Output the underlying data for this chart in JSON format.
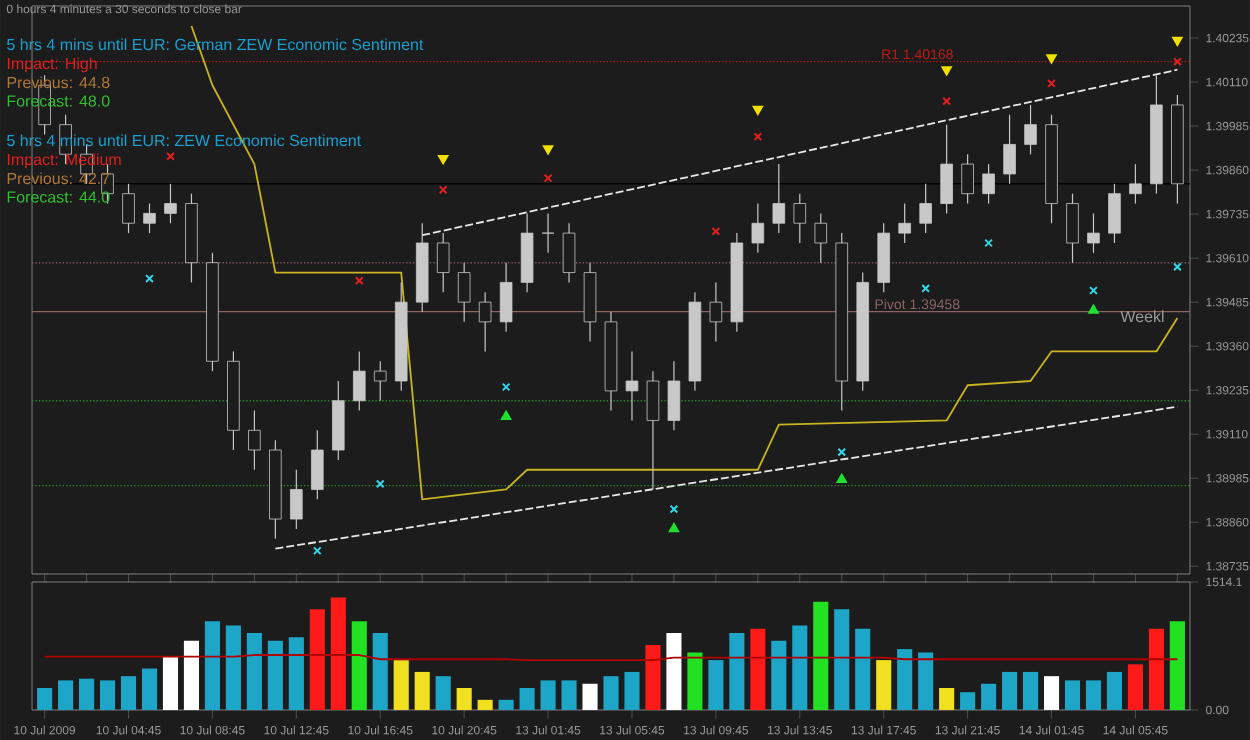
{
  "chart_data": [
    {
      "type": "candlestick",
      "categories": [
        null,
        null,
        null,
        null,
        null,
        null,
        null,
        null,
        null,
        null,
        null,
        null,
        null,
        null,
        null,
        null,
        null,
        null,
        null,
        null,
        null,
        null,
        null,
        null,
        null,
        null,
        null,
        null,
        null,
        null,
        null,
        null,
        null,
        null,
        null,
        null,
        null,
        null,
        null,
        null,
        null,
        null,
        null,
        null,
        null,
        null,
        null,
        null,
        null,
        null,
        null,
        null,
        null,
        null,
        null
      ],
      "series": [
        {
          "color": "#c8c8c8",
          "ohlc": [
            [
              1.40101,
              1.40129,
              1.39961,
              1.39989
            ],
            [
              1.39989,
              1.40017,
              1.39877,
              1.39905
            ],
            [
              1.39905,
              1.39933,
              1.39821,
              1.39849
            ],
            [
              1.39849,
              1.39877,
              1.39765,
              1.39793
            ],
            [
              1.39793,
              1.39821,
              1.39681,
              1.39709
            ],
            [
              1.39709,
              1.39765,
              1.39681,
              1.39737
            ],
            [
              1.39737,
              1.39821,
              1.39709,
              1.39765
            ],
            [
              1.39765,
              1.39793,
              1.39541,
              1.39597
            ],
            [
              1.39597,
              1.39625,
              1.39289,
              1.39317
            ],
            [
              1.39317,
              1.39345,
              1.39065,
              1.39121
            ],
            [
              1.39121,
              1.39177,
              1.39009,
              1.39065
            ],
            [
              1.39065,
              1.39093,
              1.38813,
              1.38869
            ],
            [
              1.38869,
              1.39009,
              1.38841,
              1.38953
            ],
            [
              1.38953,
              1.39121,
              1.38925,
              1.39065
            ],
            [
              1.39065,
              1.39261,
              1.39037,
              1.39205
            ],
            [
              1.39205,
              1.39345,
              1.39177,
              1.39289
            ],
            [
              1.39289,
              1.39317,
              1.39205,
              1.39261
            ],
            [
              1.39261,
              1.39541,
              1.39233,
              1.39485
            ],
            [
              1.39485,
              1.39709,
              1.39457,
              1.39653
            ],
            [
              1.39653,
              1.39681,
              1.39513,
              1.39569
            ],
            [
              1.39569,
              1.39597,
              1.39429,
              1.39485
            ],
            [
              1.39485,
              1.39513,
              1.39345,
              1.39429
            ],
            [
              1.39429,
              1.39597,
              1.39401,
              1.39541
            ],
            [
              1.39541,
              1.39737,
              1.39513,
              1.39681
            ],
            [
              1.39681,
              1.39737,
              1.39625,
              1.39681
            ],
            [
              1.39681,
              1.39709,
              1.39541,
              1.39569
            ],
            [
              1.39569,
              1.39597,
              1.39373,
              1.39429
            ],
            [
              1.39429,
              1.39457,
              1.39177,
              1.39233
            ],
            [
              1.39233,
              1.39345,
              1.39149,
              1.39261
            ],
            [
              1.39261,
              1.39289,
              1.38953,
              1.39149
            ],
            [
              1.39149,
              1.39317,
              1.39121,
              1.39261
            ],
            [
              1.39261,
              1.39513,
              1.39233,
              1.39485
            ],
            [
              1.39485,
              1.39541,
              1.39373,
              1.39429
            ],
            [
              1.39429,
              1.39681,
              1.39401,
              1.39653
            ],
            [
              1.39653,
              1.39765,
              1.39625,
              1.39709
            ],
            [
              1.39709,
              1.39877,
              1.39681,
              1.39765
            ],
            [
              1.39765,
              1.39793,
              1.39653,
              1.39709
            ],
            [
              1.39709,
              1.39737,
              1.39597,
              1.39653
            ],
            [
              1.39653,
              1.39681,
              1.39177,
              1.39261
            ],
            [
              1.39261,
              1.39569,
              1.39233,
              1.39541
            ],
            [
              1.39541,
              1.39709,
              1.39513,
              1.39681
            ],
            [
              1.39681,
              1.39765,
              1.39653,
              1.39709
            ],
            [
              1.39709,
              1.39821,
              1.39681,
              1.39765
            ],
            [
              1.39765,
              1.39989,
              1.39737,
              1.39877
            ],
            [
              1.39877,
              1.39905,
              1.39765,
              1.39793
            ],
            [
              1.39793,
              1.39877,
              1.39765,
              1.39849
            ],
            [
              1.39849,
              1.40017,
              1.39821,
              1.39933
            ],
            [
              1.39933,
              1.40045,
              1.39905,
              1.39989
            ],
            [
              1.39989,
              1.40017,
              1.39709,
              1.39765
            ],
            [
              1.39765,
              1.39793,
              1.39597,
              1.39653
            ],
            [
              1.39653,
              1.39737,
              1.39625,
              1.39681
            ],
            [
              1.39681,
              1.39821,
              1.39653,
              1.39793
            ],
            [
              1.39793,
              1.39877,
              1.39765,
              1.39821
            ],
            [
              1.39821,
              1.40129,
              1.39793,
              1.40045
            ],
            [
              1.40045,
              1.40073,
              1.39765,
              1.39821
            ]
          ]
        },
        {
          "type": "line",
          "color": "#e8e8e8",
          "line_style": "dashed",
          "values": [
            null,
            null,
            null,
            null,
            null,
            null,
            null,
            null,
            null,
            null,
            null,
            null,
            null,
            null,
            null,
            null,
            null,
            null,
            1.39675,
            null,
            null,
            null,
            null,
            null,
            null,
            null,
            null,
            null,
            null,
            null,
            null,
            null,
            null,
            null,
            null,
            null,
            null,
            null,
            null,
            null,
            null,
            null,
            null,
            null,
            null,
            null,
            null,
            null,
            null,
            null,
            null,
            null,
            null,
            null,
            1.40145
          ]
        },
        {
          "type": "line",
          "color": "#e8e8e8",
          "line_style": "dashed",
          "values": [
            null,
            null,
            null,
            null,
            null,
            null,
            null,
            null,
            null,
            null,
            null,
            1.38785,
            null,
            null,
            null,
            null,
            null,
            null,
            null,
            null,
            null,
            null,
            null,
            null,
            null,
            null,
            null,
            null,
            null,
            null,
            null,
            null,
            null,
            null,
            null,
            null,
            null,
            null,
            null,
            null,
            null,
            null,
            null,
            null,
            null,
            null,
            null,
            null,
            null,
            null,
            null,
            null,
            null,
            null,
            1.39188
          ]
        },
        {
          "type": "line",
          "color": "#c8b420",
          "line_style": "solid",
          "values": [
            null,
            null,
            null,
            null,
            null,
            null,
            null,
            1.40269,
            1.40101,
            null,
            1.39877,
            1.39569,
            null,
            null,
            null,
            null,
            null,
            1.39569,
            1.38925,
            null,
            null,
            null,
            1.38953,
            1.39009,
            null,
            null,
            null,
            null,
            null,
            null,
            null,
            null,
            null,
            null,
            1.39009,
            1.39137,
            null,
            null,
            null,
            null,
            null,
            null,
            null,
            1.39149,
            1.39249,
            null,
            null,
            1.39261,
            1.39345,
            null,
            null,
            null,
            null,
            1.39345,
            1.3944
          ]
        },
        {
          "type": "scatter",
          "color": "#e02020",
          "marker": "cross",
          "values": [
            null,
            null,
            null,
            null,
            null,
            null,
            1.39899,
            null,
            null,
            null,
            null,
            null,
            null,
            null,
            null,
            1.39546,
            null,
            null,
            null,
            1.39804,
            null,
            null,
            null,
            null,
            1.39837,
            null,
            null,
            null,
            null,
            null,
            null,
            null,
            1.39686,
            null,
            1.39955,
            null,
            null,
            null,
            null,
            null,
            null,
            null,
            null,
            1.40056,
            null,
            null,
            null,
            null,
            1.40106,
            null,
            null,
            null,
            null,
            null,
            1.40168
          ]
        },
        {
          "type": "scatter",
          "color": "#30d8e8",
          "marker": "cross",
          "values": [
            null,
            null,
            null,
            null,
            null,
            1.39552,
            null,
            null,
            null,
            null,
            null,
            null,
            null,
            1.38779,
            null,
            null,
            1.38969,
            null,
            null,
            null,
            null,
            null,
            1.39244,
            null,
            null,
            null,
            null,
            null,
            null,
            null,
            1.38897,
            null,
            null,
            null,
            null,
            null,
            null,
            null,
            1.39059,
            null,
            null,
            null,
            1.39524,
            null,
            null,
            1.39653,
            null,
            null,
            null,
            null,
            1.39518,
            null,
            null,
            null,
            1.39585
          ]
        },
        {
          "type": "scatter",
          "color": "#f0e000",
          "marker": "triangle",
          "values": [
            null,
            null,
            null,
            null,
            null,
            null,
            null,
            null,
            null,
            null,
            null,
            null,
            null,
            null,
            null,
            null,
            null,
            null,
            null,
            1.39893,
            null,
            null,
            null,
            null,
            1.39921,
            null,
            null,
            null,
            null,
            null,
            null,
            null,
            null,
            null,
            1.40033,
            null,
            null,
            null,
            null,
            null,
            null,
            null,
            null,
            1.40145,
            null,
            null,
            null,
            null,
            1.40179,
            null,
            null,
            null,
            null,
            null,
            1.40229
          ]
        },
        {
          "type": "scatter",
          "color": "#20e030",
          "marker": "triangle",
          "values": [
            null,
            null,
            null,
            null,
            null,
            null,
            null,
            null,
            null,
            null,
            null,
            null,
            null,
            null,
            null,
            null,
            null,
            null,
            null,
            null,
            null,
            null,
            1.3916,
            null,
            null,
            null,
            null,
            null,
            null,
            null,
            1.38841,
            null,
            null,
            null,
            null,
            null,
            null,
            null,
            1.38981,
            null,
            null,
            null,
            null,
            null,
            null,
            null,
            null,
            null,
            null,
            null,
            1.39462,
            null,
            null,
            null,
            null
          ]
        }
      ],
      "ylim": [
        1.38713,
        1.40326
      ],
      "yticks": [
        1.40235,
        {
          "value": 1.4011,
          "label": "1.40110"
        },
        1.39985,
        {
          "value": 1.3986,
          "label": "1.39860"
        },
        1.39735,
        {
          "value": 1.3961,
          "label": "1.39610"
        },
        1.39485,
        {
          "value": 1.3936,
          "label": "1.39360"
        },
        1.39235,
        {
          "value": 1.3911,
          "label": "1.39110"
        },
        1.38985,
        {
          "value": 1.3886,
          "label": "1.38860"
        },
        1.38735
      ],
      "tick_labels": "y",
      "ref_lines": [
        {
          "axis": "y",
          "value": 1.40168,
          "label": "R1 1.40168",
          "color": "#c01818",
          "line_style": "dotted"
        },
        {
          "axis": "y",
          "value": 1.39458,
          "label": "Pivot 1.39458",
          "color": "#8c6464",
          "line_style": "solid"
        },
        {
          "axis": "y",
          "value": 1.39821,
          "color": "#000000",
          "line_style": "solid"
        },
        {
          "axis": "y",
          "value": 1.38964,
          "color": "#2a8a2a",
          "line_style": "dotted"
        },
        {
          "axis": "y",
          "value": 1.39205,
          "color": "#2a8a2a",
          "line_style": "dotted"
        },
        {
          "axis": "y",
          "value": 1.39597,
          "color": "#7a5a5a",
          "line_style": "dotted"
        }
      ],
      "annotations": [
        "0 hours 4 minutes a 30 seconds to close bar",
        "5 hrs 4 mins until EUR: German ZEW Economic Sentiment",
        "Impact: High",
        "Previous: 44.8",
        "Forecast: 48.0",
        "5 hrs 4 mins until EUR: ZEW Economic Sentiment",
        "Impact: Medium",
        "Previous: 42.7",
        "Forecast: 44.0",
        "Weekl"
      ]
    },
    {
      "type": "bar",
      "categories": [
        "10 Jul 2009",
        null,
        null,
        null,
        "10 Jul 04:45",
        null,
        null,
        null,
        "10 Jul 08:45",
        null,
        null,
        null,
        "10 Jul 12:45",
        null,
        null,
        null,
        "10 Jul 16:45",
        null,
        null,
        null,
        "10 Jul 20:45",
        null,
        null,
        null,
        "13 Jul 01:45",
        null,
        null,
        null,
        "13 Jul 05:45",
        null,
        null,
        null,
        "13 Jul 09:45",
        null,
        null,
        null,
        "13 Jul 13:45",
        null,
        null,
        null,
        "13 Jul 17:45",
        null,
        null,
        null,
        "13 Jul 21:45",
        null,
        null,
        null,
        "14 Jul 01:45",
        null,
        null,
        null,
        "14 Jul 05:45",
        null,
        null
      ],
      "series": [
        {
          "values": [
            260,
            350,
            370,
            350,
            400,
            490,
            630,
            820,
            1050,
            1000,
            910,
            820,
            860,
            1190,
            1330,
            1050,
            910,
            590,
            450,
            400,
            260,
            120,
            120,
            260,
            350,
            350,
            310,
            400,
            450,
            770,
            910,
            680,
            590,
            910,
            960,
            820,
            1000,
            1280,
            1190,
            960,
            590,
            720,
            680,
            260,
            210,
            310,
            450,
            450,
            400,
            350,
            350,
            450,
            540,
            960,
            1050
          ],
          "colors": [
            "#1ea6c9",
            "#1ea6c9",
            "#1ea6c9",
            "#1ea6c9",
            "#1ea6c9",
            "#1ea6c9",
            "#ffffff",
            "#ffffff",
            "#1ea6c9",
            "#1ea6c9",
            "#1ea6c9",
            "#1ea6c9",
            "#1ea6c9",
            "#ff1a1a",
            "#ff1a1a",
            "#22e022",
            "#1ea6c9",
            "#f0e020",
            "#f0e020",
            "#1ea6c9",
            "#f0e020",
            "#f0e020",
            "#1ea6c9",
            "#1ea6c9",
            "#1ea6c9",
            "#1ea6c9",
            "#ffffff",
            "#1ea6c9",
            "#1ea6c9",
            "#ff1a1a",
            "#ffffff",
            "#22e022",
            "#1ea6c9",
            "#1ea6c9",
            "#ff1a1a",
            "#1ea6c9",
            "#1ea6c9",
            "#22e022",
            "#1ea6c9",
            "#1ea6c9",
            "#f0e020",
            "#1ea6c9",
            "#1ea6c9",
            "#f0e020",
            "#1ea6c9",
            "#1ea6c9",
            "#1ea6c9",
            "#1ea6c9",
            "#ffffff",
            "#1ea6c9",
            "#1ea6c9",
            "#1ea6c9",
            "#ff1a1a",
            "#ff1a1a",
            "#22e022"
          ]
        },
        {
          "type": "line",
          "color": "#b00000",
          "values": [
            630,
            630,
            630,
            630,
            630,
            630,
            630,
            630,
            630,
            630,
            650,
            650,
            650,
            650,
            650,
            650,
            600,
            600,
            600,
            600,
            600,
            600,
            600,
            590,
            590,
            590,
            590,
            590,
            590,
            590,
            620,
            620,
            620,
            620,
            620,
            620,
            620,
            620,
            620,
            620,
            620,
            600,
            600,
            600,
            600,
            600,
            600,
            600,
            600,
            600,
            600,
            600,
            600,
            600,
            600
          ]
        }
      ],
      "ylim": [
        0,
        1514.1
      ],
      "yticks": [
        1514.1,
        {
          "value": 0,
          "label": "0.00"
        }
      ]
    }
  ]
}
